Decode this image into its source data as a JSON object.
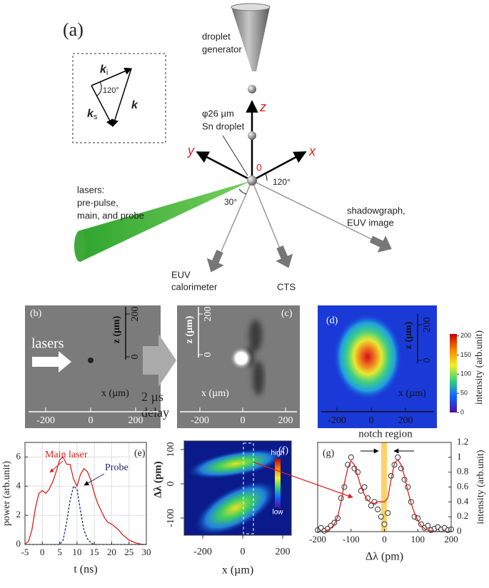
{
  "figure": {
    "panel_a": {
      "label": "(a)",
      "k_i": "k",
      "k_i_sub": "i",
      "k_s": "k",
      "k_s_sub": "s",
      "k": "k",
      "inset_angle": "120°",
      "droplet_generator": [
        "droplet",
        "generator"
      ],
      "droplet": [
        "φ26 µm",
        "Sn droplet"
      ],
      "axis_z": "z",
      "axis_y": "y",
      "axis_x": "x",
      "origin": "0",
      "angle_120": "120°",
      "angle_30": "30°",
      "lasers": [
        "lasers:",
        "pre-pulse,",
        "main, and probe"
      ],
      "shadowgraph": [
        "shadowgraph,",
        "EUV image"
      ],
      "euv": [
        "EUV",
        "calorimeter"
      ],
      "cts": "CTS"
    },
    "panel_b": {
      "label": "(b)",
      "lasers": "lasers",
      "z_label": "z (µm)",
      "zticks": [
        200,
        0
      ],
      "x_label": "x (µm)",
      "xticks": [
        -200,
        0,
        200
      ]
    },
    "delay": [
      "2 µs",
      "delay"
    ],
    "panel_c": {
      "label": "(c)",
      "z_label": "z (µm)",
      "zticks": [
        200,
        0
      ],
      "x_label": "x (µm)",
      "xticks": [
        -200,
        0,
        200
      ]
    },
    "panel_d": {
      "label": "(d)",
      "z_label": "z (µm)",
      "zticks": [
        200,
        0
      ],
      "x_label": "x (µm)",
      "xticks": [
        -200,
        0,
        200
      ],
      "colorbar_label": "intensity (arb.unit)",
      "clim": [
        0,
        205
      ],
      "cticks": [
        200,
        150,
        100,
        50,
        0
      ]
    },
    "panel_f": {
      "label": "(f)",
      "y_label": "Δλ (pm)",
      "yticks": [
        100,
        0,
        -100
      ],
      "x_label": "x (µm)",
      "xticks": [
        -200,
        0,
        200
      ],
      "colorbar_high": "high",
      "colorbar_low": "low"
    }
  },
  "chart_data": [
    {
      "type": "line",
      "label": "(e)",
      "xlabel": "t (ns)",
      "ylabel": "power (arb.unit)",
      "grid": true,
      "x": [
        -5,
        -4,
        -3,
        -2,
        -1,
        0,
        1,
        2,
        3,
        4,
        5,
        6,
        7,
        8,
        9,
        10,
        11,
        12,
        13,
        14,
        15,
        16,
        17,
        18,
        19,
        20,
        21,
        22,
        23,
        24,
        25,
        26,
        27,
        28,
        29,
        30
      ],
      "xlim": [
        -5,
        30
      ],
      "xticks": [
        -5,
        0,
        5,
        10,
        15,
        20,
        25,
        30
      ],
      "ylim": [
        0,
        7
      ],
      "yticks": [
        0,
        2,
        4,
        6
      ],
      "series": [
        {
          "name": "Main laser",
          "color": "#e02020",
          "values": [
            0.05,
            0.2,
            1.0,
            2.5,
            3.5,
            3.7,
            3.5,
            3.8,
            4.3,
            5.0,
            5.8,
            6.0,
            5.5,
            5.5,
            4.5,
            4.0,
            4.8,
            5.2,
            5.0,
            4.4,
            3.5,
            2.8,
            2.3,
            1.8,
            1.5,
            1.4,
            1.2,
            1.0,
            0.7,
            0.5,
            0.3,
            0.2,
            0.1,
            0.05,
            0,
            0
          ]
        },
        {
          "name": "Probe",
          "color": "#1a2a6c",
          "dash": true,
          "values": [
            0,
            0,
            0,
            0,
            0,
            0,
            0,
            0,
            0,
            0,
            0,
            0.3,
            1.5,
            3.0,
            4.0,
            3.8,
            2.3,
            1.0,
            0.4,
            0.1,
            0,
            0,
            0,
            0,
            0,
            0,
            0,
            0,
            0,
            0,
            0,
            0,
            0,
            0,
            0,
            0
          ]
        }
      ]
    },
    {
      "type": "line",
      "label": "(g)",
      "xlabel": "Δλ (pm)",
      "ylabel": "intensity (arb.unit)",
      "annotation": "notch region",
      "grid": false,
      "notch": [
        -10,
        8
      ],
      "x": [
        -200,
        -190,
        -180,
        -170,
        -160,
        -150,
        -140,
        -130,
        -120,
        -110,
        -100,
        -90,
        -80,
        -70,
        -60,
        -50,
        -40,
        -30,
        -20,
        -10,
        0,
        10,
        20,
        30,
        40,
        50,
        60,
        70,
        80,
        90,
        100,
        110,
        120,
        130,
        140,
        150,
        160,
        170,
        180,
        190,
        200
      ],
      "xlim": [
        -200,
        200
      ],
      "xticks": [
        -200,
        -100,
        0,
        100,
        200
      ],
      "y2lim": [
        0,
        1.2
      ],
      "y2ticks": [
        0,
        0.2,
        0.4,
        0.6,
        0.8,
        1,
        1.2
      ],
      "series": [
        {
          "color": "#333333",
          "style": "markers",
          "axis": "y2",
          "values": [
            0.02,
            0.05,
            0.01,
            0.04,
            0.08,
            0.12,
            0.18,
            0.45,
            0.6,
            0.9,
            1.0,
            0.85,
            0.8,
            0.55,
            0.6,
            0.45,
            0.35,
            0.4,
            0.3,
            0.2,
            0.1,
            0.25,
            0.75,
            0.9,
            1.0,
            0.85,
            0.7,
            0.6,
            0.4,
            0.2,
            0.18,
            0.1,
            0.05,
            0.08,
            0.02,
            0.04,
            0.06,
            0.03,
            0.05,
            0.02,
            0.03
          ]
        },
        {
          "color": "#e02020",
          "axis": "y2",
          "values": [
            0,
            0,
            0,
            0.02,
            0.05,
            0.1,
            0.2,
            0.4,
            0.65,
            0.85,
            0.95,
            0.9,
            0.75,
            0.6,
            0.5,
            0.42,
            0.39,
            0.38,
            0.4,
            0.4,
            0.4,
            0.45,
            0.7,
            0.92,
            0.97,
            0.9,
            0.75,
            0.55,
            0.38,
            0.25,
            0.15,
            0.08,
            0.04,
            0.02,
            0.01,
            0,
            0,
            0,
            0,
            0,
            0
          ]
        }
      ]
    }
  ]
}
